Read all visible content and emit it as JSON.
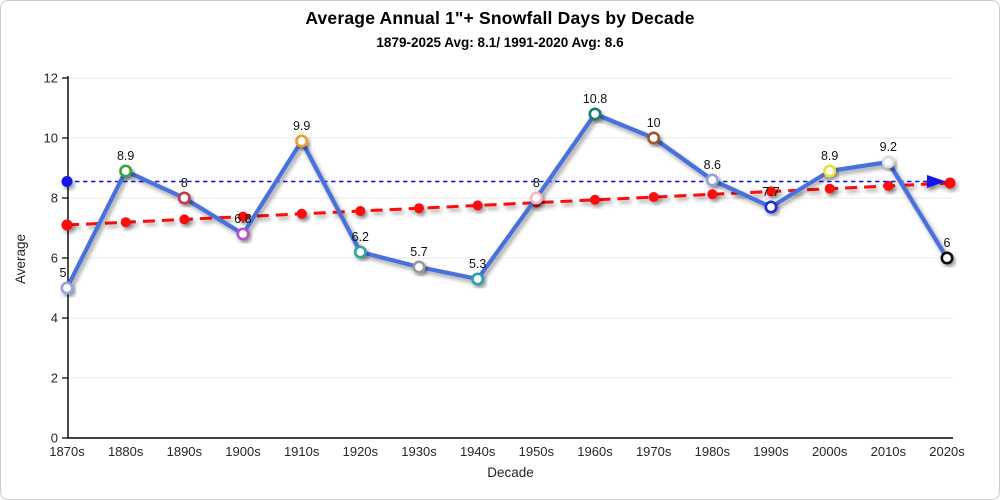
{
  "header": {
    "title": "Average Annual 1\"+ Snowfall Days by Decade",
    "subtitle": "1879-2025 Avg: 8.1/ 1991-2020 Avg: 8.6"
  },
  "colors": {
    "main_line": "#4a71dc",
    "trend_line": "#fb0b0b",
    "reference_line": "#1515e6",
    "grid": "#e8e8e8",
    "axis": "#000000",
    "tick_text": "#262626",
    "data_label_text": "#111111",
    "marker_fill": "#ffffff"
  },
  "chart_data": {
    "type": "line",
    "title": "Average Annual 1\"+ Snowfall Days by Decade",
    "subtitle": "1879-2025 Avg: 8.1/ 1991-2020 Avg: 8.6",
    "xlabel": "Decade",
    "ylabel": "Average",
    "ylim": [
      0,
      12
    ],
    "yticks": [
      0,
      2,
      4,
      6,
      8,
      10,
      12
    ],
    "grid": true,
    "legend": "none",
    "categories": [
      "1870s",
      "1880s",
      "1890s",
      "1900s",
      "1910s",
      "1920s",
      "1930s",
      "1940s",
      "1950s",
      "1960s",
      "1970s",
      "1980s",
      "1990s",
      "2000s",
      "2010s",
      "2020s"
    ],
    "series": [
      {
        "name": "snowfall-days-by-decade",
        "type": "line",
        "values": [
          5,
          8.9,
          8,
          6.8,
          9.9,
          6.2,
          5.7,
          5.3,
          8,
          10.8,
          10,
          8.6,
          7.7,
          8.9,
          9.2,
          6
        ],
        "point_labels": [
          "5",
          "8.9",
          "8",
          "6.8",
          "9.9",
          "6.2",
          "5.7",
          "5.3",
          "8",
          "10.8",
          "10",
          "8.6",
          "7.7",
          "8.9",
          "9.2",
          "6"
        ],
        "marker_colors": [
          "#8fa6e0",
          "#3ba33a",
          "#c2394f",
          "#b055c8",
          "#f09d2e",
          "#2fa89e",
          "#9a9a9a",
          "#2f9fb0",
          "#f2b8c6",
          "#1e7a74",
          "#9c5a2a",
          "#98a0dc",
          "#1a2fd8",
          "#e6e23c",
          "#d9dce8",
          "#111111"
        ]
      },
      {
        "name": "linear-trend",
        "type": "trend",
        "start_value": 7.1,
        "end_value": 8.5,
        "dashed": true
      },
      {
        "name": "1991-2020-average-reference",
        "type": "reference",
        "value": 8.6,
        "dashed": true,
        "arrow_end": true
      }
    ]
  }
}
